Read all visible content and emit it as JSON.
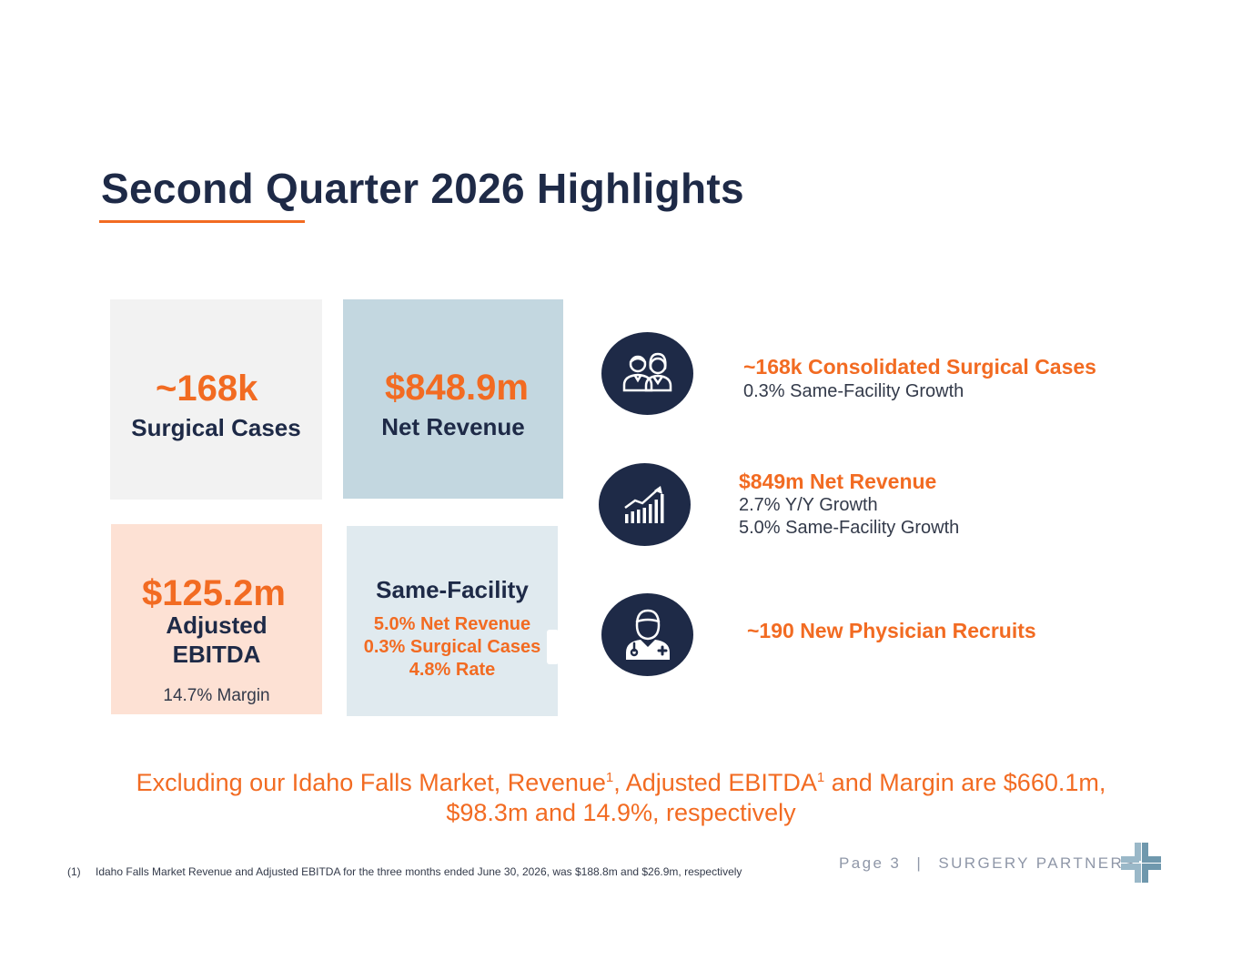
{
  "title": "Second Quarter 2026 Highlights",
  "tiles": {
    "cases": {
      "value": "~168k",
      "label": "Surgical Cases"
    },
    "revenue": {
      "value": "$848.9m",
      "label": "Net Revenue"
    },
    "ebitda": {
      "value": "$125.2m",
      "label_line1": "Adjusted",
      "label_line2": "EBITDA",
      "margin": "14.7% Margin"
    },
    "same_facility": {
      "heading": "Same-Facility",
      "lines": [
        "5.0% Net Revenue",
        "0.3% Surgical Cases",
        "4.8% Rate"
      ]
    }
  },
  "highlights": [
    {
      "icon": "people-icon",
      "title": "~168k Consolidated Surgical Cases",
      "lines": [
        "0.3% Same-Facility Growth"
      ]
    },
    {
      "icon": "growth-chart-icon",
      "title": "$849m Net Revenue",
      "lines": [
        "2.7% Y/Y Growth",
        "5.0% Same-Facility Growth"
      ]
    },
    {
      "icon": "physician-icon",
      "title": "~190 New Physician Recruits",
      "lines": []
    }
  ],
  "exclusion": {
    "part1": "Excluding our Idaho Falls Market, Revenue",
    "sup1": "1",
    "part2": ", Adjusted EBITDA",
    "sup2": "1",
    "part3": " and Margin are $660.1m,",
    "line2": "$98.3m and 14.9%, respectively"
  },
  "footnote": {
    "marker": "(1)",
    "text": "Idaho Falls Market Revenue and Adjusted EBITDA for the three months ended June 30, 2026, was $188.8m and $26.9m, respectively"
  },
  "footer": {
    "page": "Page 3",
    "separator": "|",
    "company": "SURGERY PARTNERS"
  },
  "colors": {
    "navy": "#1e2a47",
    "orange": "#f26b22",
    "tile_gray": "#f2f2f2",
    "tile_blue": "#c3d7e0",
    "tile_peach": "#fde1d4",
    "tile_lightblue": "#e0eaef"
  }
}
